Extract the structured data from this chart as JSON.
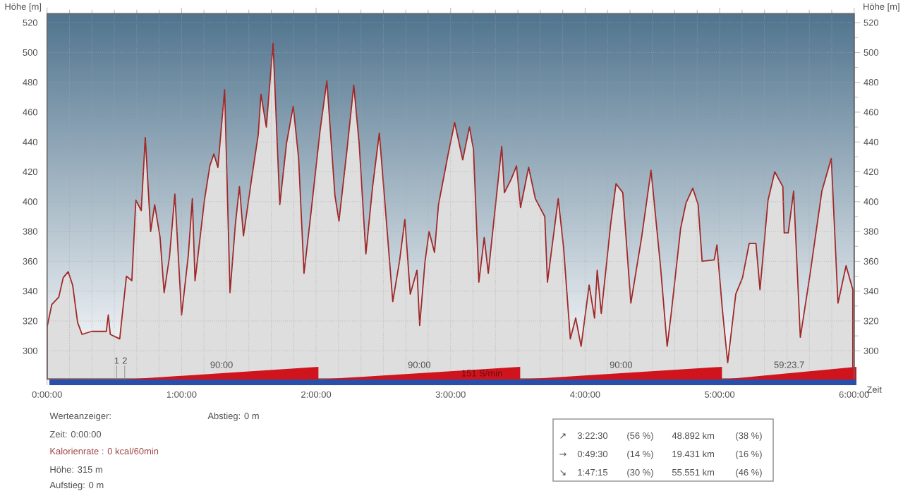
{
  "chart_data": {
    "type": "area",
    "xlabel": "Zeit",
    "ylabel": "Höhe [m]",
    "y2label": "Höhe [m]",
    "xlim": [
      0,
      6
    ],
    "ylim": [
      281,
      526
    ],
    "y2lim": [
      281,
      526
    ],
    "xticks": [
      {
        "value": 0,
        "label": "0:00:00"
      },
      {
        "value": 1,
        "label": "1:00:00"
      },
      {
        "value": 2,
        "label": "2:00:00"
      },
      {
        "value": 3,
        "label": "3:00:00"
      },
      {
        "value": 4,
        "label": "4:00:00"
      },
      {
        "value": 5,
        "label": "5:00:00"
      },
      {
        "value": 6,
        "label": "6:00:00"
      }
    ],
    "yticks": [
      300,
      320,
      340,
      360,
      380,
      400,
      420,
      440,
      460,
      480,
      500,
      520
    ],
    "y2ticks": [
      300,
      320,
      340,
      360,
      380,
      400,
      420,
      440,
      460,
      480,
      500,
      520
    ],
    "grid": true,
    "series": [
      {
        "color": "#a02828",
        "x": [
          0,
          0.035,
          0.087,
          0.12,
          0.157,
          0.19,
          0.227,
          0.26,
          0.33,
          0.44,
          0.455,
          0.47,
          0.54,
          0.56,
          0.59,
          0.63,
          0.66,
          0.7,
          0.73,
          0.77,
          0.8,
          0.84,
          0.87,
          0.91,
          0.95,
          1.0,
          1.05,
          1.08,
          1.1,
          1.17,
          1.21,
          1.24,
          1.27,
          1.32,
          1.36,
          1.4,
          1.43,
          1.46,
          1.52,
          1.57,
          1.59,
          1.63,
          1.68,
          1.73,
          1.78,
          1.83,
          1.87,
          1.91,
          1.96,
          2.03,
          2.08,
          2.14,
          2.17,
          2.23,
          2.28,
          2.32,
          2.37,
          2.42,
          2.47,
          2.51,
          2.57,
          2.62,
          2.66,
          2.7,
          2.75,
          2.77,
          2.81,
          2.84,
          2.88,
          2.91,
          2.98,
          3.03,
          3.09,
          3.14,
          3.17,
          3.21,
          3.25,
          3.28,
          3.38,
          3.4,
          3.45,
          3.49,
          3.52,
          3.58,
          3.63,
          3.7,
          3.72,
          3.8,
          3.84,
          3.89,
          3.93,
          3.97,
          4.03,
          4.07,
          4.09,
          4.12,
          4.19,
          4.23,
          4.28,
          4.34,
          4.42,
          4.49,
          4.56,
          4.61,
          4.64,
          4.71,
          4.75,
          4.8,
          4.84,
          4.87,
          4.96,
          4.98,
          5.02,
          5.06,
          5.12,
          5.17,
          5.22,
          5.27,
          5.3,
          5.36,
          5.41,
          5.47,
          5.48,
          5.51,
          5.55,
          5.6,
          5.67,
          5.76,
          5.83,
          5.88,
          5.94,
          5.99
        ],
        "values": [
          316,
          331,
          336,
          349,
          353,
          344,
          319,
          311,
          313,
          313,
          324,
          311,
          308,
          325,
          350,
          347,
          401,
          394,
          443,
          380,
          398,
          376,
          339,
          363,
          405,
          324,
          364,
          402,
          347,
          401,
          424,
          432,
          423,
          475,
          339,
          385,
          410,
          377,
          415,
          445,
          472,
          450,
          506,
          398,
          439,
          464,
          429,
          352,
          391,
          448,
          481,
          404,
          387,
          435,
          478,
          439,
          365,
          410,
          446,
          401,
          333,
          360,
          388,
          338,
          354,
          317,
          360,
          380,
          366,
          398,
          431,
          453,
          428,
          450,
          435,
          346,
          376,
          352,
          437,
          406,
          415,
          424,
          396,
          423,
          402,
          390,
          346,
          402,
          369,
          308,
          322,
          303,
          344,
          322,
          354,
          325,
          385,
          412,
          406,
          332,
          376,
          421,
          357,
          303,
          325,
          382,
          399,
          409,
          398,
          360,
          361,
          371,
          328,
          292,
          338,
          349,
          372,
          372,
          341,
          401,
          420,
          410,
          379,
          379,
          407,
          309,
          350,
          407,
          429,
          332,
          357,
          341
        ]
      }
    ],
    "annotations": [
      "1",
      "2",
      "90:00",
      "90:00",
      "151 S/min",
      "90:00",
      "59:23.7",
      "Werteanzeiger:",
      "Zeit: 0:00:00",
      "Kalorienrate : 0 kcal/60min",
      "Höhe: 315 m",
      "Aufstieg: 0 m",
      "Abstieg: 0 m",
      "↗",
      "3:22:30",
      "(56 %)",
      "48.892 km",
      "(38 %)",
      "→",
      "0:49:30",
      "(14 %)",
      "19.431 km",
      "(16 %)",
      "↘",
      "1:47:15",
      "(30 %)",
      "55.551 km",
      "(46 %)"
    ]
  }
}
